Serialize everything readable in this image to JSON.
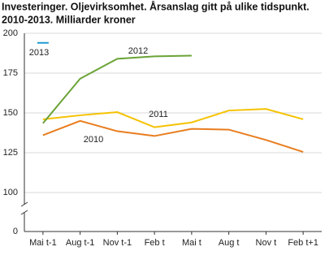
{
  "chart_data": {
    "type": "line",
    "title": [
      "Investeringer. Oljevirksomhet. Årsanslag gitt på ulike tidspunkt.",
      "2010-2013. Milliarder kroner"
    ],
    "categories": [
      "Mai t-1",
      "Aug t-1",
      "Nov t-1",
      "Feb t",
      "Mai t",
      "Aug t",
      "Nov t",
      "Feb t+1"
    ],
    "series": [
      {
        "name": "2010",
        "color": "#e87d1e",
        "values": [
          136,
          145,
          138.5,
          135.5,
          140,
          139.5,
          133,
          125.5
        ]
      },
      {
        "name": "2011",
        "color": "#f5c200",
        "values": [
          146,
          148.5,
          150.5,
          141,
          144,
          151.5,
          152.5,
          146
        ]
      },
      {
        "name": "2012",
        "color": "#6aa336",
        "values": [
          143.5,
          171.5,
          184,
          185.5,
          186,
          null,
          null,
          null
        ]
      },
      {
        "name": "2013",
        "color": "#1f9bd1",
        "values": [
          194,
          null,
          null,
          null,
          null,
          null,
          null,
          null
        ]
      }
    ],
    "ylim": [
      0,
      200
    ],
    "yticks": [
      0,
      100,
      125,
      150,
      175,
      200
    ],
    "axis_break": [
      0,
      100
    ],
    "grid": true
  }
}
